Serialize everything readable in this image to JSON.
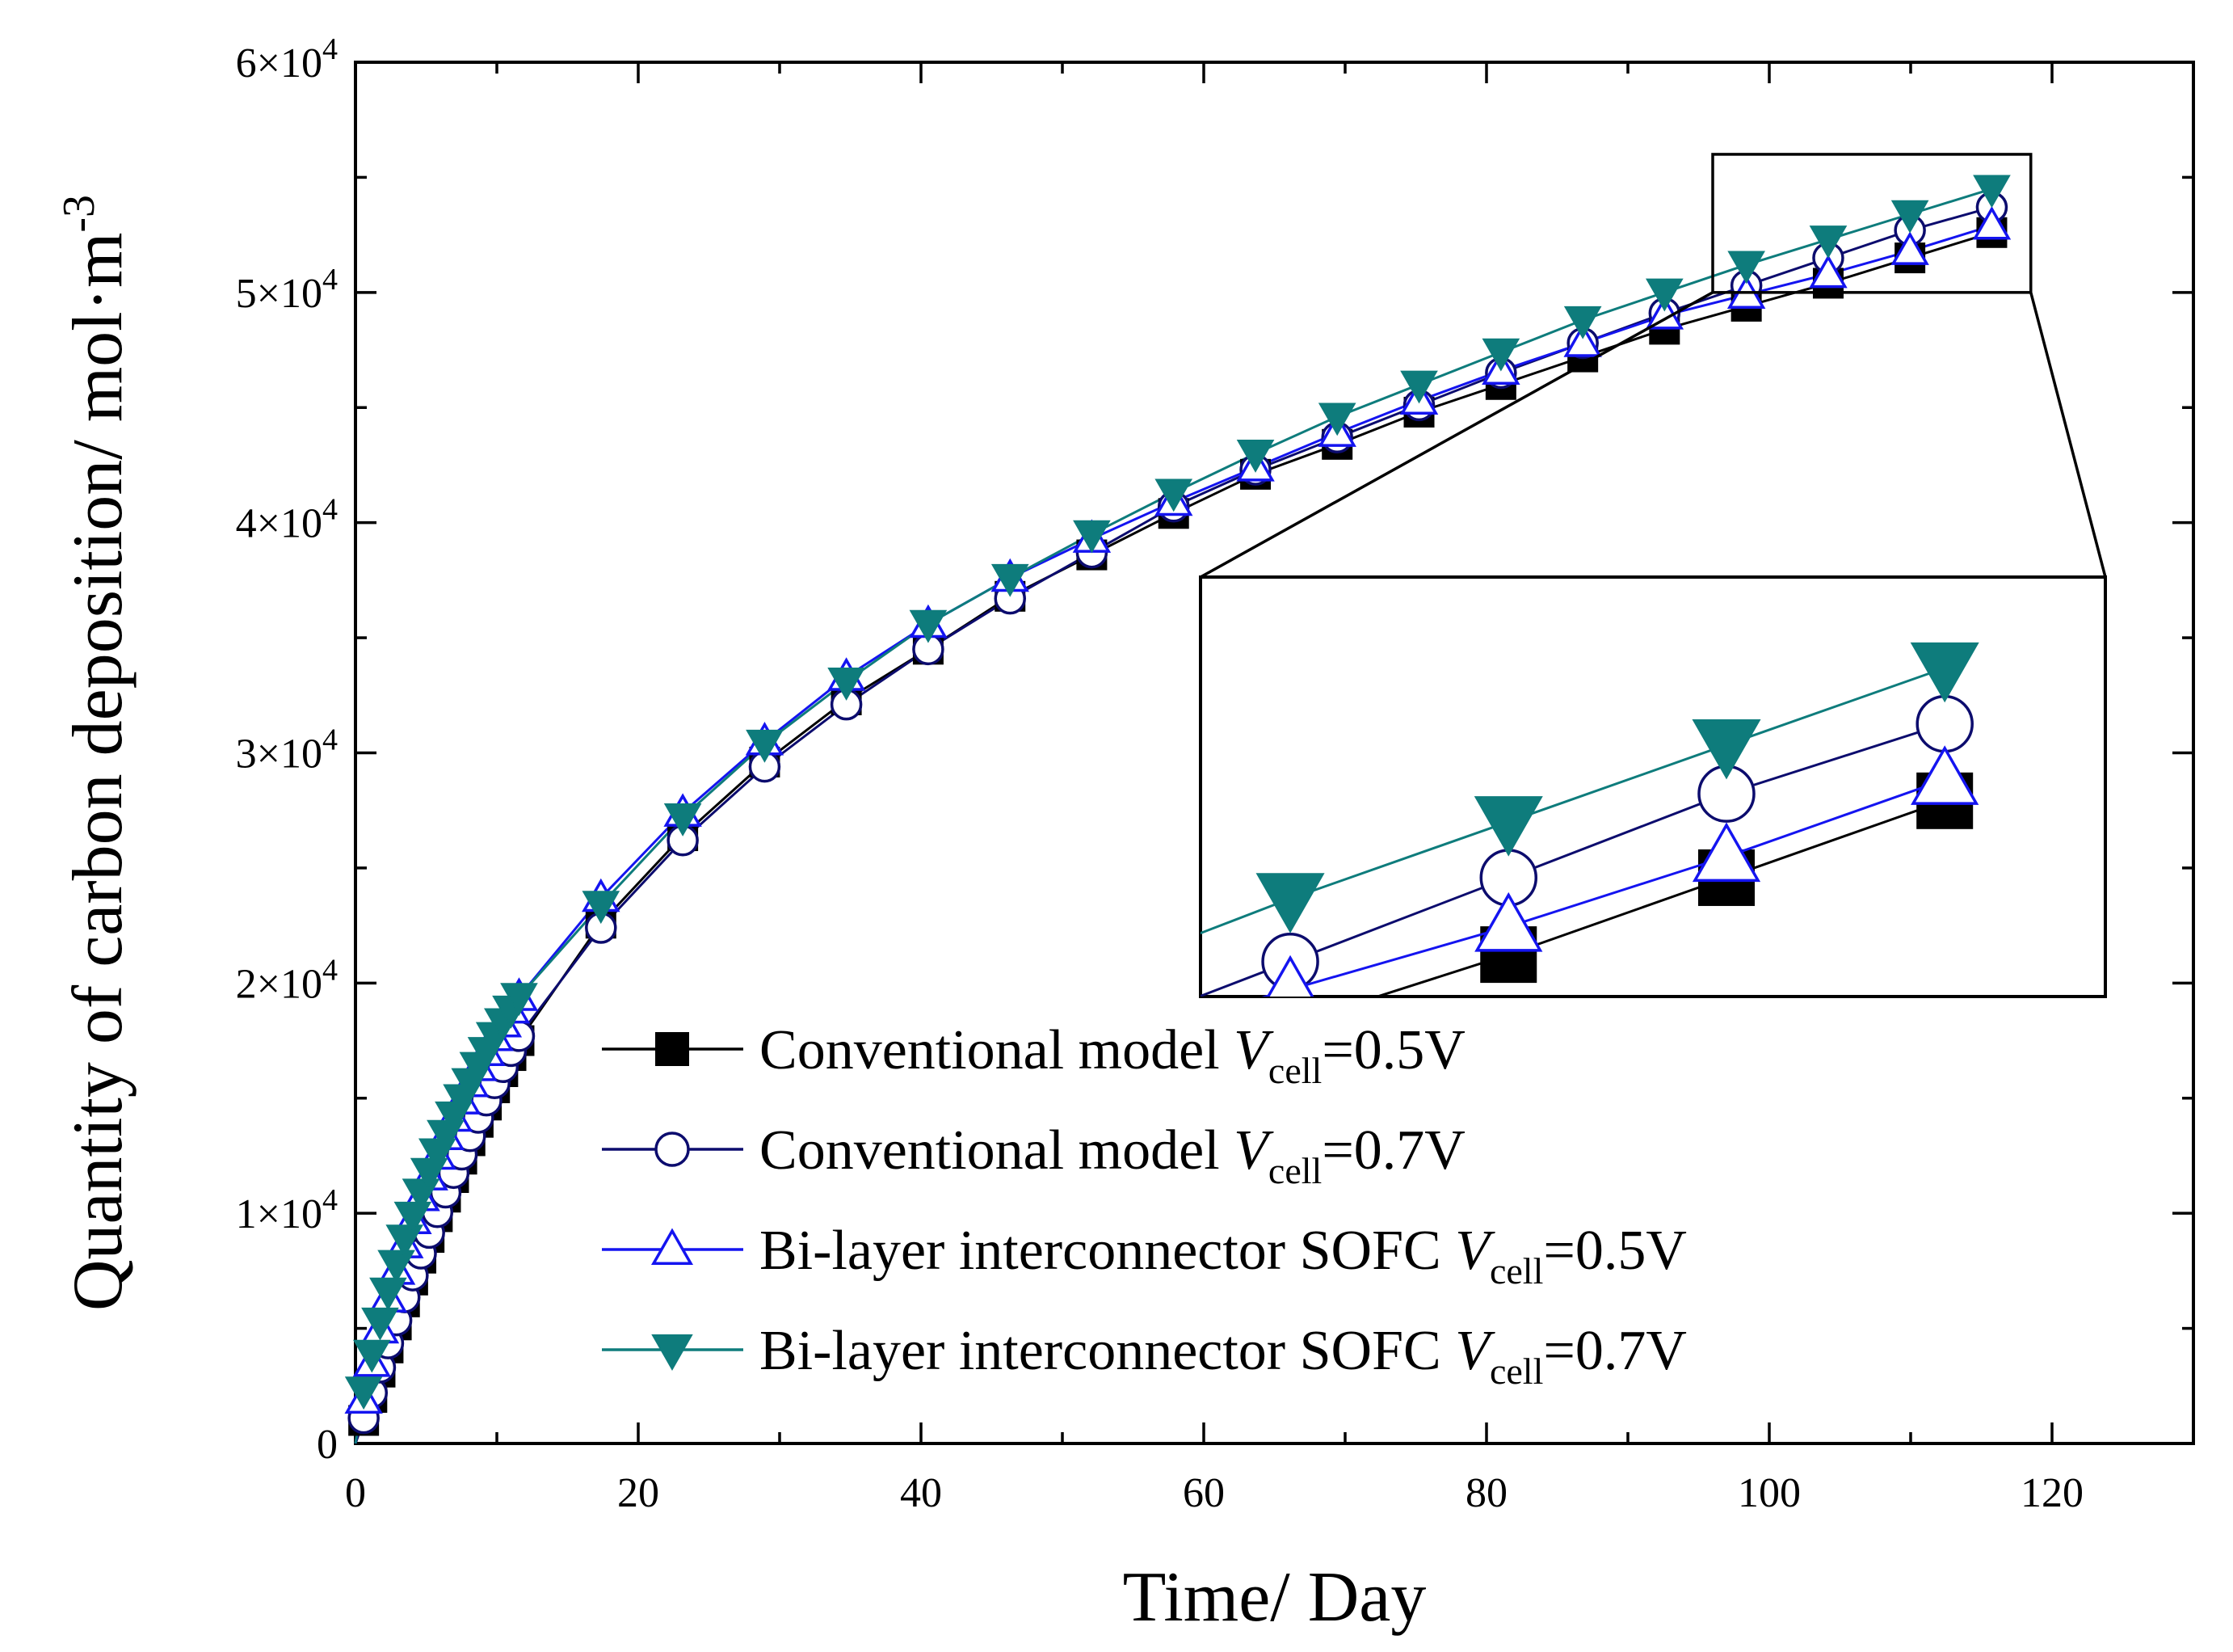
{
  "chart_data": {
    "type": "line",
    "title": "",
    "xlabel": "Time/ Day",
    "ylabel": "Quantity of carbon deposition/ mol·m",
    "ylabel_superscript": "-3",
    "xlim": [
      0,
      130
    ],
    "ylim": [
      0,
      60000
    ],
    "x_ticks": [
      0,
      20,
      40,
      60,
      80,
      100,
      120
    ],
    "x_tick_labels": [
      "0",
      "20",
      "40",
      "60",
      "80",
      "100",
      "120"
    ],
    "y_ticks": [
      {
        "value": 0,
        "mantissa": "0",
        "base": "",
        "exponent": ""
      },
      {
        "value": 10000,
        "mantissa": "1",
        "base": "×10",
        "exponent": "4"
      },
      {
        "value": 20000,
        "mantissa": "2",
        "base": "×10",
        "exponent": "4"
      },
      {
        "value": 30000,
        "mantissa": "3",
        "base": "×10",
        "exponent": "4"
      },
      {
        "value": 40000,
        "mantissa": "4",
        "base": "×10",
        "exponent": "4"
      },
      {
        "value": 50000,
        "mantissa": "5",
        "base": "×10",
        "exponent": "4"
      },
      {
        "value": 60000,
        "mantissa": "6",
        "base": "×10",
        "exponent": "4"
      }
    ],
    "x": [
      0,
      0.58,
      1.16,
      1.74,
      2.31,
      2.89,
      3.47,
      4.05,
      4.63,
      5.21,
      5.79,
      6.37,
      6.94,
      7.52,
      8.1,
      8.68,
      9.26,
      9.84,
      10.42,
      11,
      11.57,
      17.36,
      23.15,
      28.94,
      34.72,
      40.51,
      46.3,
      52.08,
      57.87,
      63.66,
      69.44,
      75.23,
      81.02,
      86.81,
      92.59,
      98.38,
      104.17,
      109.95,
      115.74
    ],
    "series": [
      {
        "name": "Conventional model V_cell=0.5V",
        "label": "Conventional model ",
        "var": "V",
        "sub": "cell",
        "value_text": "=0.5V",
        "color": "#000000",
        "marker": "square-filled",
        "values": [
          0,
          1000,
          2000,
          3100,
          4150,
          5150,
          6150,
          7100,
          8050,
          8950,
          9850,
          10700,
          11550,
          12350,
          13150,
          13950,
          14700,
          15450,
          16150,
          16850,
          17500,
          22600,
          26400,
          29600,
          32300,
          34500,
          36800,
          38600,
          40400,
          42100,
          43400,
          44800,
          46000,
          47200,
          48400,
          49400,
          50400,
          51500,
          52600
        ]
      },
      {
        "name": "Conventional model V_cell=0.7V",
        "label": "Conventional model ",
        "var": "V",
        "sub": "cell",
        "value_text": "=0.7V",
        "color": "#0c0c6e",
        "marker": "circle-open",
        "values": [
          0,
          1100,
          2200,
          3300,
          4350,
          5350,
          6350,
          7300,
          8250,
          9150,
          10050,
          10900,
          11750,
          12550,
          13350,
          14150,
          14900,
          15650,
          16350,
          17050,
          17700,
          22400,
          26200,
          29400,
          32100,
          34500,
          36700,
          38700,
          40700,
          42300,
          43700,
          45100,
          46500,
          47800,
          49100,
          50300,
          51500,
          52700,
          53700
        ]
      },
      {
        "name": "Bi-layer interconnector SOFC V_cell=0.5V",
        "label": "Bi-layer interconnector SOFC ",
        "var": "V",
        "sub": "cell",
        "value_text": "=0.5V",
        "color": "#1414f0",
        "marker": "triangle-up-open",
        "values": [
          0,
          1900,
          3500,
          4950,
          6300,
          7500,
          8650,
          9700,
          10700,
          11600,
          12500,
          13350,
          14150,
          14900,
          15650,
          16350,
          17000,
          17650,
          18250,
          18850,
          19400,
          23700,
          27400,
          30500,
          33300,
          35600,
          37600,
          39300,
          40900,
          42400,
          43900,
          45300,
          46600,
          47800,
          49000,
          49900,
          50800,
          51800,
          52900
        ]
      },
      {
        "name": "Bi-layer interconnector SOFC V_cell=0.7V",
        "label": "Bi-layer interconnector SOFC ",
        "var": "V",
        "sub": "cell",
        "value_text": "=0.7V",
        "color": "#0e7c7c",
        "marker": "triangle-down-filled",
        "values": [
          0,
          2300,
          3900,
          5300,
          6600,
          7800,
          8900,
          9900,
          10900,
          11800,
          12650,
          13450,
          14250,
          15000,
          15700,
          16400,
          17050,
          17700,
          18300,
          18850,
          19400,
          23400,
          27200,
          30400,
          33100,
          35600,
          37600,
          39500,
          41300,
          43000,
          44600,
          46000,
          47400,
          48800,
          50000,
          51200,
          52300,
          53400,
          54500
        ]
      }
    ],
    "inset": {
      "xlim": [
        96,
        120
      ],
      "ylim": [
        49800,
        55800
      ]
    },
    "legend_position": "lower-right"
  }
}
